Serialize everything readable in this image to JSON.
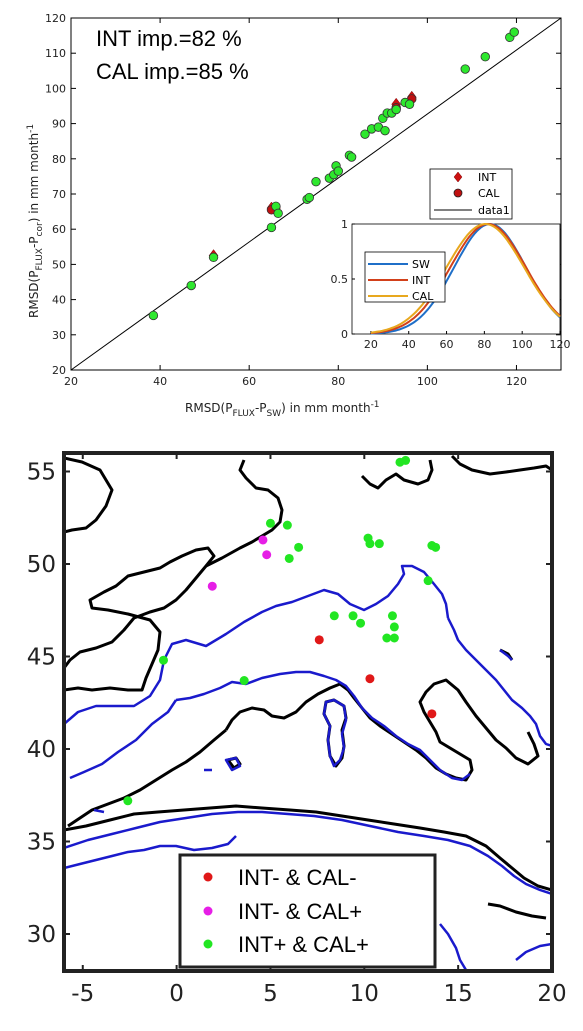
{
  "chart_data": [
    {
      "type": "scatter",
      "xlabel": "RMSD(P",
      "xlabel_sub1": "FLUX",
      "xlabel_mid": "-P",
      "xlabel_sub2": "SW",
      "xlabel_end": ") in mm month",
      "xlabel_sup": "-1",
      "ylabel": "RMSD(P",
      "ylabel_sub1": "FLUX",
      "ylabel_mid": "-P",
      "ylabel_sub2": "cor",
      "ylabel_end": ") in mm month",
      "ylabel_sup": "-1",
      "xlim": [
        20,
        130
      ],
      "ylim": [
        20,
        120
      ],
      "xticks": [
        "20",
        "40",
        "60",
        "80",
        "100",
        "120"
      ],
      "yticks": [
        "20",
        "30",
        "40",
        "50",
        "60",
        "70",
        "80",
        "90",
        "100",
        "110",
        "120"
      ],
      "annotations": [
        "INT imp.=82 %",
        "CAL imp.=85 %"
      ],
      "legend": [
        "INT",
        "CAL",
        "data1"
      ],
      "series": [
        {
          "name": "INT",
          "marker": "diamond",
          "color": "#cc1111",
          "points": [
            [
              52,
              52.5
            ],
            [
              65,
              66
            ],
            [
              66,
              66
            ],
            [
              93,
              95.5
            ],
            [
              96.5,
              97.5
            ]
          ]
        },
        {
          "name": "CAL",
          "marker": "circle",
          "color": "#c01010",
          "points": [
            [
              65,
              65.5
            ],
            [
              93,
              94.5
            ],
            [
              96.5,
              97
            ]
          ]
        },
        {
          "name": "",
          "marker": "circle",
          "color": "#2ee82e",
          "points": [
            [
              38.5,
              35.5
            ],
            [
              47,
              44
            ],
            [
              52,
              52
            ],
            [
              65,
              60.5
            ],
            [
              66,
              66.5
            ],
            [
              66.5,
              64.5
            ],
            [
              73,
              68.5
            ],
            [
              73.5,
              69
            ],
            [
              75,
              73.5
            ],
            [
              78,
              74.5
            ],
            [
              79,
              75.5
            ],
            [
              79.5,
              78
            ],
            [
              80,
              76.5
            ],
            [
              82.5,
              81
            ],
            [
              83,
              80.5
            ],
            [
              86,
              87
            ],
            [
              87.5,
              88.5
            ],
            [
              89,
              89
            ],
            [
              90,
              91.5
            ],
            [
              90.5,
              88
            ],
            [
              91,
              93
            ],
            [
              92,
              93
            ],
            [
              93,
              94
            ],
            [
              95,
              96
            ],
            [
              96,
              95.5
            ],
            [
              108.5,
              105.5
            ],
            [
              113,
              109
            ],
            [
              118.5,
              114.5
            ],
            [
              119.5,
              116
            ]
          ]
        },
        {
          "name": "data1",
          "type": "line",
          "color": "#000000",
          "points": [
            [
              20,
              20
            ],
            [
              130,
              120
            ]
          ]
        }
      ]
    },
    {
      "type": "line",
      "xlim": [
        10,
        120
      ],
      "ylim": [
        0,
        1
      ],
      "xticks": [
        "20",
        "40",
        "60",
        "80",
        "100",
        "120"
      ],
      "yticks": [
        "0",
        "0.5",
        "1"
      ],
      "legend": [
        "SW",
        "INT",
        "CAL"
      ],
      "series": [
        {
          "name": "SW",
          "color": "#1f6fc8",
          "mean": 83,
          "sd": 19
        },
        {
          "name": "INT",
          "color": "#d2401a",
          "mean": 82,
          "sd": 20
        },
        {
          "name": "CAL",
          "color": "#e8a81e",
          "mean": 80.5,
          "sd": 20.5
        }
      ]
    },
    {
      "type": "scatter",
      "xlim": [
        -6,
        20
      ],
      "ylim": [
        28,
        56
      ],
      "xticks": [
        "-5",
        "0",
        "5",
        "10",
        "15",
        "20"
      ],
      "yticks": [
        "30",
        "35",
        "40",
        "45",
        "50",
        "55"
      ],
      "legend": [
        "INT- & CAL-",
        "INT- & CAL+",
        "INT+ & CAL+"
      ],
      "series": [
        {
          "name": "INT- & CAL-",
          "color": "#e01818",
          "points": [
            [
              7.6,
              45.9
            ],
            [
              10.3,
              43.8
            ],
            [
              13.6,
              41.9
            ]
          ]
        },
        {
          "name": "INT- & CAL+",
          "color": "#e61ee6",
          "points": [
            [
              1.9,
              48.8
            ],
            [
              4.6,
              51.3
            ],
            [
              4.8,
              50.5
            ]
          ]
        },
        {
          "name": "INT+ & CAL+",
          "color": "#22e622",
          "points": [
            [
              -0.7,
              44.8
            ],
            [
              3.6,
              43.7
            ],
            [
              5.0,
              52.2
            ],
            [
              5.9,
              52.1
            ],
            [
              6.0,
              50.3
            ],
            [
              6.5,
              50.9
            ],
            [
              8.4,
              47.2
            ],
            [
              9.4,
              47.2
            ],
            [
              9.8,
              46.8
            ],
            [
              10.2,
              51.4
            ],
            [
              10.3,
              51.1
            ],
            [
              10.8,
              51.1
            ],
            [
              11.2,
              46.0
            ],
            [
              11.6,
              46.0
            ],
            [
              11.5,
              47.2
            ],
            [
              11.6,
              46.6
            ],
            [
              11.9,
              55.5
            ],
            [
              12.2,
              55.6
            ],
            [
              13.4,
              49.1
            ],
            [
              13.6,
              51.0
            ],
            [
              13.8,
              50.9
            ],
            [
              -2.6,
              37.2
            ]
          ]
        }
      ]
    }
  ]
}
